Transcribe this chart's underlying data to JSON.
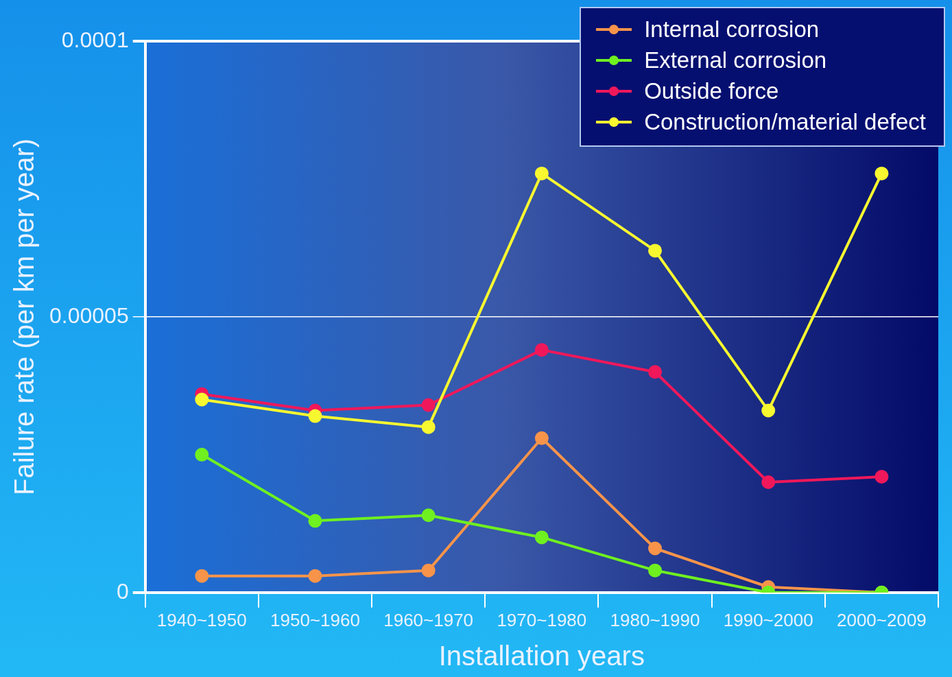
{
  "chart_data": {
    "type": "line",
    "xlabel": "Installation years",
    "ylabel": "Failure rate (per km per year)",
    "categories": [
      "1940~1950",
      "1950~1960",
      "1960~1970",
      "1970~1980",
      "1980~1990",
      "1990~2000",
      "2000~2009"
    ],
    "series": [
      {
        "name": "Internal corrosion",
        "color": "#f7944a",
        "values": [
          3e-06,
          3e-06,
          4e-06,
          2.8e-05,
          8e-06,
          1e-06,
          0
        ]
      },
      {
        "name": "External corrosion",
        "color": "#6ff020",
        "values": [
          2.5e-05,
          1.3e-05,
          1.4e-05,
          1e-05,
          4e-06,
          0,
          0
        ]
      },
      {
        "name": "Outside force",
        "color": "#f0185a",
        "values": [
          3.6e-05,
          3.3e-05,
          3.4e-05,
          4.4e-05,
          4e-05,
          2e-05,
          2.1e-05
        ]
      },
      {
        "name": "Construction/material defect",
        "color": "#f8f830",
        "values": [
          3.5e-05,
          3.2e-05,
          3e-05,
          7.6e-05,
          6.2e-05,
          3.3e-05,
          7.6e-05
        ]
      }
    ],
    "ylim": [
      0,
      0.0001
    ],
    "yticks": [
      0,
      {
        "value": 5e-05,
        "label": "0.00005"
      },
      0.0001
    ],
    "grid": "y",
    "legend": "top right",
    "marker": "circle",
    "line_style": "solid"
  }
}
